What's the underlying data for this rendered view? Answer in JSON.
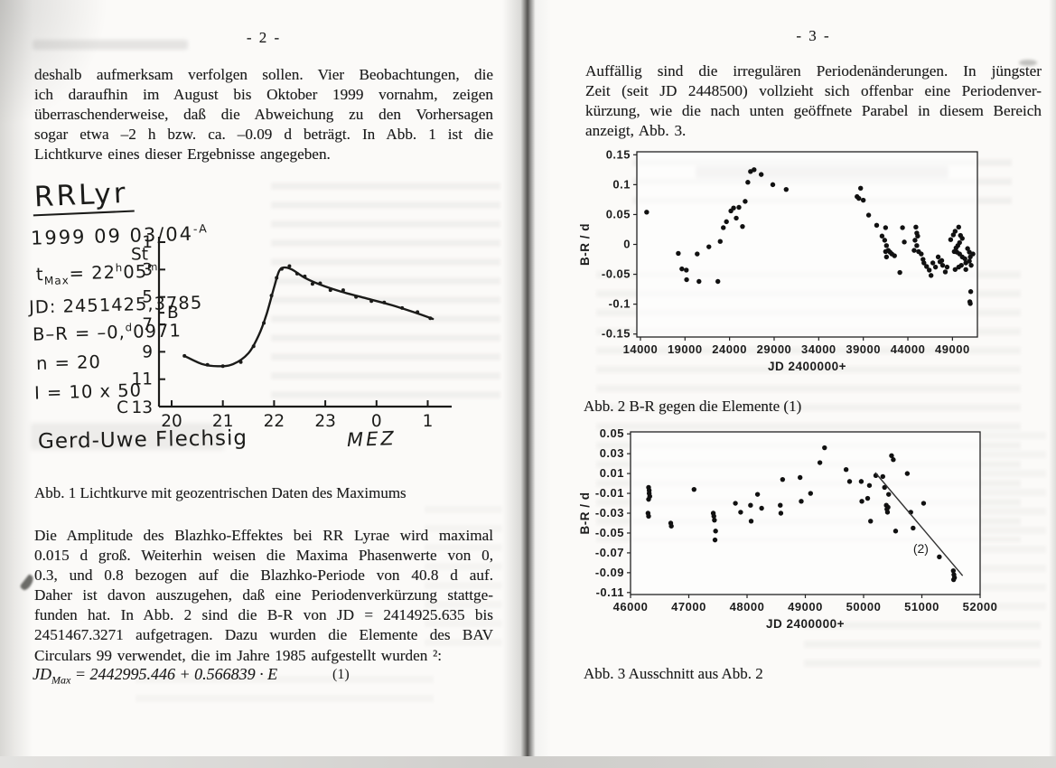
{
  "colors": {
    "ink": "#1c1c1c",
    "paper": "#fbfaf8",
    "gutter_shadow": "#53524f",
    "chart_ink": "#1d1d1d"
  },
  "left": {
    "page_number": "- 2 -",
    "paragraph1_lines": [
      "deshalb aufmerksam verfolgen sollen. Vier Beobachtungen, die",
      "ich daraufhin im August bis Oktober 1999 vornahm, zeigen",
      "überraschenderweise, daß die Abweichung zu den Vorhersagen",
      "sogar etwa –2 h bzw. ca. –0.09 d beträgt. In Abb. 1 ist die",
      "Lichtkurve eines dieser Ergebnisse angegeben."
    ],
    "caption1": "Abb. 1 Lichtkurve mit geozentrischen Daten des Maximums",
    "paragraph2_lines": [
      "Die Amplitude des Blazhko-Effektes bei RR Lyrae wird maximal",
      "0.015 d groß. Weiterhin weisen die Maxima Phasenwerte von 0,",
      "0.3, und 0.8 bezogen auf die Blazhko-Periode von 40.8 d auf.",
      "Daher ist davon auszugehen, daß eine Periodenverkürzung stattge-",
      "funden hat. In Abb. 2 sind die B-R von JD = 2414925.635 bis",
      "2451467.3271 aufgetragen. Dazu wurden die Elemente des BAV",
      "Circulars 99 verwendet, die im Jahre 1985 aufgestellt wurden ²:"
    ],
    "formula": {
      "segments": [
        {
          "t": "text",
          "v": "JD"
        },
        {
          "t": "sub",
          "v": "Max"
        },
        {
          "t": "text",
          "v": " = 2442995.446 + 0.566839 · E"
        }
      ],
      "number": "(1)"
    },
    "figure1": {
      "title": "RRLyr",
      "date_segments": [
        {
          "t": "text",
          "v": "1999 09 03/04"
        },
        {
          "t": "sup",
          "v": "-A"
        }
      ],
      "annotations": [
        [
          {
            "t": "text",
            "v": "t"
          },
          {
            "t": "sub",
            "v": "Max"
          },
          {
            "t": "text",
            "v": "= 22"
          },
          {
            "t": "sup",
            "v": "h"
          },
          {
            "t": "text",
            "v": "05"
          },
          {
            "t": "sup",
            "v": "m"
          }
        ],
        [
          {
            "t": "text",
            "v": "JD: 2451425,3785"
          }
        ],
        [
          {
            "t": "text",
            "v": "B–R = –0,"
          },
          {
            "t": "sup",
            "v": "d"
          },
          {
            "t": "text",
            "v": "0971"
          }
        ],
        [
          {
            "t": "text",
            "v": "n = 20"
          }
        ],
        [
          {
            "t": "text",
            "v": "I = 10 x 50"
          }
        ]
      ],
      "signature": "Gerd-Uwe Flechsig"
    }
  },
  "right": {
    "page_number": "- 3 -",
    "paragraph_lines": [
      "Auffällig sind die irregulären Periodenänderungen. In jüngster",
      "Zeit (seit JD 2448500) vollzieht sich offenbar eine Periodenver-",
      "kürzung, wie die nach unten geöffnete Parabel in diesem Bereich",
      "anzeigt, Abb. 3."
    ],
    "caption2": "Abb. 2 B-R gegen die Elemente (1)",
    "caption3": "Abb. 3 Ausschnitt aus Abb. 2"
  },
  "chart_data": [
    {
      "id": "abb1",
      "type": "line",
      "title": "RRLyr",
      "subtitle": "1999 09 03/04 -A",
      "xlabel": "MEZ",
      "x_tick_values": [
        20,
        21,
        22,
        23,
        24,
        25
      ],
      "x_tick_labels": [
        "20",
        "21",
        "22",
        "23",
        "0",
        "1"
      ],
      "y_tick_values": [
        1,
        3,
        5,
        7,
        9,
        11
      ],
      "y_tick_labels": [
        "1",
        "3",
        "5",
        "7",
        "9",
        "11"
      ],
      "y_bottom_prefix": "C",
      "y_bottom_label": "13",
      "y_unit": "St",
      "b_mark": "B",
      "b_mark_st": 6.15,
      "curve": [
        [
          20.25,
          9.3
        ],
        [
          20.6,
          9.9
        ],
        [
          20.9,
          10.05
        ],
        [
          21.2,
          9.9
        ],
        [
          21.5,
          9.1
        ],
        [
          21.7,
          7.8
        ],
        [
          21.85,
          6.3
        ],
        [
          22.0,
          4.3
        ],
        [
          22.1,
          3.1
        ],
        [
          22.2,
          2.85
        ],
        [
          22.35,
          3.0
        ],
        [
          22.6,
          3.6
        ],
        [
          22.9,
          4.1
        ],
        [
          23.3,
          4.6
        ],
        [
          23.8,
          5.1
        ],
        [
          24.3,
          5.6
        ],
        [
          24.8,
          6.2
        ],
        [
          25.1,
          6.6
        ]
      ],
      "points": [
        [
          20.25,
          9.3
        ],
        [
          20.7,
          9.95
        ],
        [
          21.0,
          10.05
        ],
        [
          21.35,
          9.75
        ],
        [
          21.6,
          8.6
        ],
        [
          21.8,
          6.9
        ],
        [
          21.95,
          4.9
        ],
        [
          22.05,
          3.6
        ],
        [
          22.15,
          2.95
        ],
        [
          22.3,
          2.75
        ],
        [
          22.45,
          3.3
        ],
        [
          22.6,
          3.5
        ],
        [
          22.75,
          4.05
        ],
        [
          22.9,
          4.0
        ],
        [
          23.1,
          4.5
        ],
        [
          23.35,
          4.5
        ],
        [
          23.6,
          5.0
        ],
        [
          23.9,
          5.3
        ],
        [
          24.15,
          5.4
        ],
        [
          24.5,
          5.8
        ],
        [
          24.8,
          6.1
        ],
        [
          25.05,
          6.55
        ]
      ]
    },
    {
      "id": "abb2",
      "type": "scatter",
      "xlabel": "JD 2400000+",
      "ylabel": "B-R / d",
      "xlim": [
        13600,
        51800
      ],
      "ylim": [
        -0.155,
        0.155
      ],
      "x_tick_values": [
        14000,
        19000,
        24000,
        29000,
        34000,
        39000,
        44000,
        49000
      ],
      "x_tick_labels": [
        "14000",
        "19000",
        "24000",
        "29000",
        "34000",
        "39000",
        "44000",
        "49000"
      ],
      "y_tick_values": [
        0.15,
        0.1,
        0.05,
        0,
        -0.05,
        -0.1,
        -0.15
      ],
      "y_tick_labels": [
        "0.15",
        "0.1",
        "0.05",
        "0",
        "-0.05",
        "-0.1",
        "-0.15"
      ],
      "points": [
        [
          14700,
          0.054
        ],
        [
          18250,
          -0.015
        ],
        [
          18650,
          -0.041
        ],
        [
          19150,
          -0.043
        ],
        [
          19180,
          -0.059
        ],
        [
          20570,
          -0.062
        ],
        [
          20370,
          -0.016
        ],
        [
          21680,
          -0.004
        ],
        [
          22690,
          -0.062
        ],
        [
          22950,
          0.005
        ],
        [
          23300,
          0.028
        ],
        [
          23650,
          0.038
        ],
        [
          24150,
          0.056
        ],
        [
          24450,
          0.061
        ],
        [
          24750,
          0.044
        ],
        [
          25050,
          0.062
        ],
        [
          25450,
          0.03
        ],
        [
          25750,
          0.072
        ],
        [
          26050,
          0.104
        ],
        [
          26350,
          0.122
        ],
        [
          26750,
          0.125
        ],
        [
          27550,
          0.117
        ],
        [
          28850,
          0.1
        ],
        [
          30350,
          0.092
        ],
        [
          38700,
          0.094
        ],
        [
          38300,
          0.08
        ],
        [
          38500,
          0.077
        ],
        [
          39000,
          0.074
        ],
        [
          39600,
          0.049
        ],
        [
          40500,
          0.032
        ],
        [
          41500,
          0.028
        ],
        [
          41100,
          0.014
        ],
        [
          41400,
          0.007
        ],
        [
          41600,
          -0.002
        ],
        [
          41800,
          -0.01
        ],
        [
          41500,
          -0.012
        ],
        [
          42000,
          -0.013
        ],
        [
          42200,
          -0.016
        ],
        [
          42500,
          -0.019
        ],
        [
          41600,
          -0.021
        ],
        [
          43400,
          0.028
        ],
        [
          43600,
          0.004
        ],
        [
          43100,
          -0.047
        ],
        [
          44900,
          0.029
        ],
        [
          45000,
          0.019
        ],
        [
          45100,
          0.014
        ],
        [
          44800,
          0.007
        ],
        [
          45000,
          -0.002
        ],
        [
          44700,
          -0.01
        ],
        [
          45200,
          -0.012
        ],
        [
          45500,
          -0.016
        ],
        [
          45700,
          -0.025
        ],
        [
          45800,
          -0.031
        ],
        [
          46100,
          -0.037
        ],
        [
          46400,
          -0.043
        ],
        [
          46800,
          -0.031
        ],
        [
          47100,
          -0.038
        ],
        [
          46600,
          -0.052
        ],
        [
          47400,
          -0.021
        ],
        [
          47800,
          -0.027
        ],
        [
          47900,
          -0.035
        ],
        [
          48400,
          -0.038
        ],
        [
          48200,
          -0.046
        ],
        [
          47600,
          -0.029
        ],
        [
          48800,
          0.008
        ],
        [
          49100,
          0.016
        ],
        [
          49300,
          0.022
        ],
        [
          49700,
          0.029
        ],
        [
          49900,
          0.015
        ],
        [
          50100,
          0.01
        ],
        [
          49800,
          0.003
        ],
        [
          49600,
          -0.002
        ],
        [
          49400,
          -0.006
        ],
        [
          49200,
          -0.012
        ],
        [
          49500,
          -0.013
        ],
        [
          49800,
          -0.016
        ],
        [
          50100,
          -0.021
        ],
        [
          50400,
          -0.024
        ],
        [
          50500,
          -0.031
        ],
        [
          50000,
          -0.035
        ],
        [
          49700,
          -0.038
        ],
        [
          49300,
          -0.042
        ],
        [
          50500,
          -0.042
        ],
        [
          50700,
          -0.007
        ],
        [
          50900,
          -0.013
        ],
        [
          51000,
          -0.021
        ],
        [
          50900,
          -0.028
        ],
        [
          51100,
          -0.035
        ],
        [
          51300,
          -0.016
        ],
        [
          51050,
          -0.079
        ],
        [
          50950,
          -0.096
        ],
        [
          51000,
          -0.099
        ]
      ]
    },
    {
      "id": "abb3",
      "type": "scatter",
      "xlabel": "JD 2400000+",
      "ylabel": "B-R / d",
      "xlim": [
        46000,
        52000
      ],
      "ylim": [
        -0.112,
        0.052
      ],
      "x_tick_values": [
        46000,
        47000,
        48000,
        49000,
        50000,
        51000,
        52000
      ],
      "x_tick_labels": [
        "46000",
        "47000",
        "48000",
        "49000",
        "50000",
        "51000",
        "52000"
      ],
      "y_tick_values": [
        0.05,
        0.03,
        0.01,
        -0.01,
        -0.03,
        -0.05,
        -0.07,
        -0.09,
        -0.11
      ],
      "y_tick_labels": [
        "0.05",
        "0.03",
        "0.01",
        "-0.01",
        "-0.03",
        "-0.05",
        "-0.07",
        "-0.09",
        "-0.11"
      ],
      "points": [
        [
          46310,
          -0.004
        ],
        [
          46320,
          -0.007
        ],
        [
          46320,
          -0.01
        ],
        [
          46330,
          -0.013
        ],
        [
          46310,
          -0.016
        ],
        [
          46300,
          -0.03
        ],
        [
          46310,
          -0.033
        ],
        [
          46690,
          -0.04
        ],
        [
          46700,
          -0.043
        ],
        [
          47090,
          -0.006
        ],
        [
          47420,
          -0.03
        ],
        [
          47430,
          -0.033
        ],
        [
          47440,
          -0.037
        ],
        [
          47460,
          -0.048
        ],
        [
          47450,
          -0.057
        ],
        [
          47800,
          -0.02
        ],
        [
          47890,
          -0.029
        ],
        [
          48060,
          -0.022
        ],
        [
          48070,
          -0.038
        ],
        [
          48180,
          -0.011
        ],
        [
          48250,
          -0.025
        ],
        [
          48570,
          -0.022
        ],
        [
          48580,
          -0.03
        ],
        [
          48610,
          0.004
        ],
        [
          48910,
          0.006
        ],
        [
          48930,
          -0.018
        ],
        [
          49090,
          -0.01
        ],
        [
          49250,
          0.021
        ],
        [
          49330,
          0.036
        ],
        [
          49700,
          0.014
        ],
        [
          49760,
          0.002
        ],
        [
          49960,
          0.002
        ],
        [
          49970,
          -0.018
        ],
        [
          50070,
          -0.015
        ],
        [
          50100,
          -0.002
        ],
        [
          50120,
          -0.038
        ],
        [
          50210,
          0.008
        ],
        [
          50330,
          0.007
        ],
        [
          50360,
          -0.004
        ],
        [
          50390,
          -0.022
        ],
        [
          50400,
          -0.026
        ],
        [
          50410,
          -0.029
        ],
        [
          50420,
          -0.024
        ],
        [
          50430,
          -0.011
        ],
        [
          50480,
          0.028
        ],
        [
          50510,
          0.024
        ],
        [
          50550,
          -0.048
        ],
        [
          50750,
          0.01
        ],
        [
          50810,
          -0.029
        ],
        [
          50850,
          -0.045
        ],
        [
          51030,
          -0.02
        ],
        [
          51300,
          -0.074
        ],
        [
          51540,
          -0.088
        ],
        [
          51550,
          -0.092
        ],
        [
          51560,
          -0.095
        ],
        [
          51545,
          -0.097
        ]
      ],
      "trend": {
        "from": [
          50200,
          0.011
        ],
        "to": [
          51700,
          -0.093
        ],
        "label": "(2)",
        "label_pos": [
          50850,
          -0.07
        ]
      }
    }
  ]
}
